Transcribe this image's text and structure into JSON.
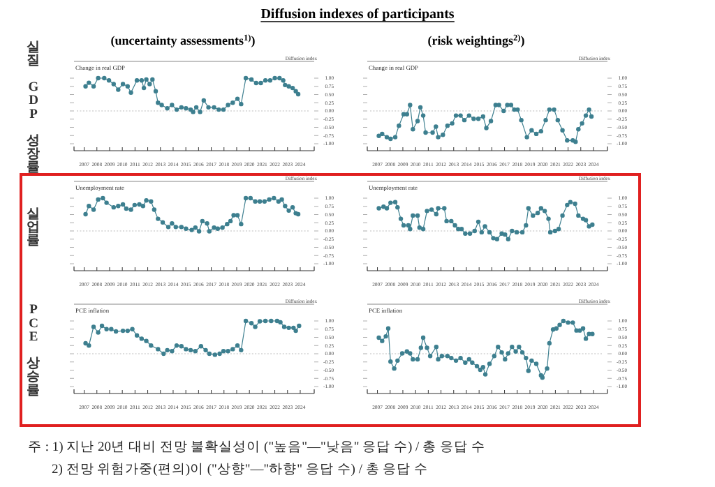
{
  "chart_data": [
    {
      "type": "line",
      "title": "Change in real GDP",
      "ylabel": "Diffusion index",
      "annotations": [
        "Diffusion indexes of participants",
        "(uncertainty assessments$^{1)}$)",
        "실질 GDP 성장률"
      ],
      "marker": "circle",
      "line_style": "solid",
      "xlim": [
        2006.2,
        2025.1
      ],
      "xticks": [
        2007,
        2008,
        2009,
        2010,
        2011,
        2012,
        2013,
        2014,
        2015,
        2016,
        2017,
        2018,
        2019,
        2020,
        2021,
        2022,
        2023,
        2024
      ],
      "ylim": [
        -1,
        1
      ],
      "yticks": [
        {
          "value": 1,
          "label": "1.00"
        },
        {
          "value": 0.75,
          "label": "0.75"
        },
        {
          "value": 0.5,
          "label": "0.50"
        },
        {
          "value": 0.25,
          "label": "0.25"
        },
        {
          "value": 0,
          "label": "0.00"
        },
        {
          "value": -0.25,
          "label": "-0.25"
        },
        {
          "value": -0.5,
          "label": "-0.50"
        },
        {
          "value": -0.75,
          "label": "-0.75"
        },
        {
          "value": -1,
          "label": "-1.00"
        }
      ],
      "ref_lines": [
        {
          "axis": "y",
          "value": 0,
          "line_style": "dotted",
          "color": "#bbbbbb"
        }
      ],
      "series": [
        {
          "color": "#3d7f8f",
          "x": [
            2007.11,
            2007.37,
            2007.74,
            2008.1,
            2008.58,
            2008.95,
            2009.32,
            2009.68,
            2010.05,
            2010.42,
            2010.68,
            2011.15,
            2011.52,
            2011.7,
            2011.89,
            2012.15,
            2012.37,
            2012.63,
            2012.81,
            2013.1,
            2013.54,
            2013.91,
            2014.28,
            2014.65,
            2015.01,
            2015.38,
            2015.57,
            2015.82,
            2016.12,
            2016.41,
            2016.78,
            2017.22,
            2017.59,
            2017.96,
            2018.32,
            2018.69,
            2019.06,
            2019.35,
            2019.72,
            2020.16,
            2020.53,
            2020.9,
            2021.26,
            2021.63,
            2022.0,
            2022.37,
            2022.66,
            2022.81,
            2023.1,
            2023.4,
            2023.65,
            2023.84
          ],
          "values": [
            0.75,
            0.86,
            0.75,
            1,
            1,
            0.93,
            0.82,
            0.65,
            0.82,
            0.75,
            0.56,
            0.93,
            0.93,
            0.7,
            0.96,
            0.82,
            0.96,
            0.6,
            0.25,
            0.18,
            0.08,
            0.18,
            0.04,
            0.11,
            0.08,
            0.04,
            -0.03,
            0.11,
            -0.03,
            0.32,
            0.11,
            0.11,
            0.04,
            0.04,
            0.18,
            0.25,
            0.37,
            0.21,
            1,
            0.96,
            0.85,
            0.85,
            0.93,
            0.93,
            1,
            1,
            0.93,
            0.79,
            0.75,
            0.7,
            0.6,
            0.51
          ]
        }
      ]
    },
    {
      "type": "line",
      "title": "Change in real GDP",
      "ylabel": "Diffusion index",
      "annotations": [
        "(risk weightings$^{2)}$)"
      ],
      "marker": "circle",
      "line_style": "solid",
      "xlim": [
        2006.2,
        2025.1
      ],
      "xticks": [
        2007,
        2008,
        2009,
        2010,
        2011,
        2012,
        2013,
        2014,
        2015,
        2016,
        2017,
        2018,
        2019,
        2020,
        2021,
        2022,
        2023,
        2024
      ],
      "ylim": [
        -1,
        1
      ],
      "yticks": [
        {
          "value": 1,
          "label": "1.00"
        },
        {
          "value": 0.75,
          "label": "0.75"
        },
        {
          "value": 0.5,
          "label": "0.50"
        },
        {
          "value": 0.25,
          "label": "0.25"
        },
        {
          "value": 0,
          "label": "0.00"
        },
        {
          "value": -0.25,
          "label": "-0.25"
        },
        {
          "value": -0.5,
          "label": "-0.50"
        },
        {
          "value": -0.75,
          "label": "-0.75"
        },
        {
          "value": -1,
          "label": "-1.00"
        }
      ],
      "ref_lines": [
        {
          "axis": "y",
          "value": 0,
          "line_style": "dotted",
          "color": "#bbbbbb"
        }
      ],
      "series": [
        {
          "color": "#3d7f8f",
          "x": [
            2007.11,
            2007.37,
            2007.74,
            2008.03,
            2008.4,
            2008.69,
            2009.06,
            2009.32,
            2009.57,
            2009.79,
            2010.16,
            2010.38,
            2010.6,
            2010.79,
            2011.34,
            2011.6,
            2011.78,
            2012.15,
            2012.51,
            2012.88,
            2013.18,
            2013.54,
            2013.84,
            2014.21,
            2014.57,
            2014.94,
            2015.31,
            2015.57,
            2015.93,
            2016.3,
            2016.56,
            2016.93,
            2017.22,
            2017.51,
            2017.77,
            2018.03,
            2018.32,
            2018.76,
            2019.13,
            2019.5,
            2019.87,
            2020.24,
            2020.53,
            2020.9,
            2021.19,
            2021.56,
            2021.93,
            2022.37,
            2022.59,
            2022.81,
            2023.1,
            2023.4,
            2023.65,
            2023.84
          ],
          "values": [
            -0.76,
            -0.7,
            -0.8,
            -0.85,
            -0.8,
            -0.45,
            -0.1,
            -0.1,
            0.18,
            -0.56,
            -0.31,
            0.11,
            -0.14,
            -0.66,
            -0.66,
            -0.48,
            -0.8,
            -0.73,
            -0.45,
            -0.38,
            -0.14,
            -0.14,
            -0.28,
            -0.14,
            -0.24,
            -0.24,
            -0.17,
            -0.52,
            -0.31,
            0.18,
            0.18,
            0,
            0.18,
            0.18,
            0.04,
            0.04,
            -0.28,
            -0.8,
            -0.59,
            -0.7,
            -0.62,
            -0.28,
            0.04,
            0.04,
            -0.28,
            -0.59,
            -0.9,
            -0.9,
            -0.94,
            -0.56,
            -0.38,
            -0.14,
            0.04,
            -0.17
          ]
        }
      ]
    },
    {
      "type": "line",
      "title": "Unemployment rate",
      "ylabel": "Diffusion index",
      "annotations": [
        "실업률"
      ],
      "marker": "circle",
      "line_style": "solid",
      "xlim": [
        2006.2,
        2025.1
      ],
      "xticks": [
        2007,
        2008,
        2009,
        2010,
        2011,
        2012,
        2013,
        2014,
        2015,
        2016,
        2017,
        2018,
        2019,
        2020,
        2021,
        2022,
        2023,
        2024
      ],
      "ylim": [
        -1,
        1
      ],
      "yticks": [
        {
          "value": 1,
          "label": "1.00"
        },
        {
          "value": 0.75,
          "label": "0.75"
        },
        {
          "value": 0.5,
          "label": "0.50"
        },
        {
          "value": 0.25,
          "label": "0.25"
        },
        {
          "value": 0,
          "label": "0.00"
        },
        {
          "value": -0.25,
          "label": "-0.25"
        },
        {
          "value": -0.5,
          "label": "-0.50"
        },
        {
          "value": -0.75,
          "label": "-0.75"
        },
        {
          "value": -1,
          "label": "-1.00"
        }
      ],
      "ref_lines": [
        {
          "axis": "y",
          "value": 0,
          "line_style": "dotted",
          "color": "#bbbbbb"
        }
      ],
      "series": [
        {
          "color": "#3d7f8f",
          "x": [
            2007.11,
            2007.37,
            2007.74,
            2008.1,
            2008.47,
            2008.76,
            2009.32,
            2009.68,
            2010.05,
            2010.31,
            2010.68,
            2010.97,
            2011.34,
            2011.63,
            2011.89,
            2012.26,
            2012.51,
            2012.81,
            2013.18,
            2013.62,
            2013.91,
            2014.21,
            2014.65,
            2015.01,
            2015.46,
            2015.75,
            2016.04,
            2016.3,
            2016.67,
            2016.85,
            2017.22,
            2017.51,
            2017.88,
            2018.25,
            2018.51,
            2018.76,
            2019.06,
            2019.35,
            2019.72,
            2020.09,
            2020.46,
            2020.82,
            2021.19,
            2021.56,
            2021.93,
            2022.29,
            2022.55,
            2022.81,
            2023.1,
            2023.4,
            2023.65,
            2023.84
          ],
          "values": [
            0.51,
            0.76,
            0.65,
            0.96,
            1,
            0.86,
            0.72,
            0.76,
            0.81,
            0.68,
            0.65,
            0.79,
            0.81,
            0.76,
            0.93,
            0.9,
            0.65,
            0.37,
            0.26,
            0.12,
            0.23,
            0.12,
            0.12,
            0.07,
            0.03,
            0.1,
            -0.01,
            0.3,
            0.23,
            -0.01,
            0.1,
            0.07,
            0.1,
            0.21,
            0.3,
            0.48,
            0.48,
            0.21,
            1,
            1,
            0.9,
            0.9,
            0.9,
            0.96,
            1,
            0.9,
            0.96,
            0.76,
            0.62,
            0.72,
            0.54,
            0.51
          ]
        }
      ]
    },
    {
      "type": "line",
      "title": "Unemployment rate",
      "ylabel": "Diffusion index",
      "marker": "circle",
      "line_style": "solid",
      "xlim": [
        2006.2,
        2025.1
      ],
      "xticks": [
        2007,
        2008,
        2009,
        2010,
        2011,
        2012,
        2013,
        2014,
        2015,
        2016,
        2017,
        2018,
        2019,
        2020,
        2021,
        2022,
        2023,
        2024
      ],
      "ylim": [
        -1,
        1
      ],
      "yticks": [
        {
          "value": 1,
          "label": "1.00"
        },
        {
          "value": 0.75,
          "label": "0.75"
        },
        {
          "value": 0.5,
          "label": "0.50"
        },
        {
          "value": 0.25,
          "label": "0.25"
        },
        {
          "value": 0,
          "label": "0.00"
        },
        {
          "value": -0.25,
          "label": "-0.25"
        },
        {
          "value": -0.5,
          "label": "-0.50"
        },
        {
          "value": -0.75,
          "label": "-0.75"
        },
        {
          "value": -1,
          "label": "-1.00"
        }
      ],
      "ref_lines": [
        {
          "axis": "y",
          "value": 0,
          "line_style": "dotted",
          "color": "#bbbbbb"
        }
      ],
      "series": [
        {
          "color": "#3d7f8f",
          "x": [
            2007.11,
            2007.48,
            2007.74,
            2008.03,
            2008.4,
            2008.58,
            2008.84,
            2009.06,
            2009.43,
            2009.57,
            2009.79,
            2010.16,
            2010.31,
            2010.6,
            2010.9,
            2011.26,
            2011.63,
            2011.78,
            2012.26,
            2012.44,
            2012.81,
            2013.1,
            2013.36,
            2013.62,
            2013.91,
            2014.28,
            2014.65,
            2014.94,
            2015.2,
            2015.46,
            2015.82,
            2016.12,
            2016.41,
            2016.78,
            2017.04,
            2017.29,
            2017.59,
            2017.96,
            2018.4,
            2018.69,
            2018.88,
            2019.24,
            2019.61,
            2019.87,
            2020.16,
            2020.46,
            2020.6,
            2020.97,
            2021.26,
            2021.56,
            2021.93,
            2022.18,
            2022.55,
            2022.81,
            2023.18,
            2023.4,
            2023.65,
            2023.91
          ],
          "values": [
            0.69,
            0.74,
            0.69,
            0.86,
            0.88,
            0.72,
            0.37,
            0.17,
            0.17,
            0.06,
            0.47,
            0.47,
            0.1,
            0.06,
            0.61,
            0.65,
            0.51,
            0.69,
            0.69,
            0.3,
            0.3,
            0.17,
            0.06,
            0.06,
            -0.08,
            -0.08,
            0,
            0.28,
            -0.04,
            0.14,
            -0.04,
            -0.22,
            -0.25,
            -0.08,
            -0.11,
            -0.25,
            0,
            -0.04,
            -0.04,
            0.17,
            0.69,
            0.47,
            0.55,
            0.69,
            0.61,
            0.37,
            -0.04,
            0,
            0.06,
            0.47,
            0.79,
            0.88,
            0.83,
            0.47,
            0.37,
            0.33,
            0.14,
            0.19
          ]
        }
      ]
    },
    {
      "type": "line",
      "title": "PCE inflation",
      "ylabel": "Diffusion index",
      "annotations": [
        "PCE 상승률",
        "주 : 1) 지난 20년 대비 전망 불확실성이 (\"높음\"—\"낮음\" 응답 수) / 총 응답 수",
        "2) 전망 위험가중(편의)이 (\"상향\"—\"하향\" 응답 수) / 총 응답 수"
      ],
      "marker": "circle",
      "line_style": "solid",
      "xlim": [
        2006.2,
        2025.1
      ],
      "xticks": [
        2007,
        2008,
        2009,
        2010,
        2011,
        2012,
        2013,
        2014,
        2015,
        2016,
        2017,
        2018,
        2019,
        2020,
        2021,
        2022,
        2023,
        2024
      ],
      "ylim": [
        -1,
        1
      ],
      "yticks": [
        {
          "value": 1,
          "label": "1.00"
        },
        {
          "value": 0.75,
          "label": "0.75"
        },
        {
          "value": 0.5,
          "label": "0.50"
        },
        {
          "value": 0.25,
          "label": "0.25"
        },
        {
          "value": 0,
          "label": "0.00"
        },
        {
          "value": -0.25,
          "label": "-0.25"
        },
        {
          "value": -0.5,
          "label": "-0.50"
        },
        {
          "value": -0.75,
          "label": "-0.75"
        },
        {
          "value": -1,
          "label": "-1.00"
        }
      ],
      "ref_lines": [
        {
          "axis": "y",
          "value": 0,
          "line_style": "dotted",
          "color": "#bbbbbb"
        }
      ],
      "series": [
        {
          "color": "#3d7f8f",
          "x": [
            2007.11,
            2007.37,
            2007.74,
            2008.1,
            2008.4,
            2008.76,
            2009.13,
            2009.5,
            2010.05,
            2010.42,
            2010.79,
            2011.15,
            2011.52,
            2011.89,
            2012.26,
            2012.81,
            2013.25,
            2013.54,
            2013.91,
            2014.28,
            2014.65,
            2015.01,
            2015.38,
            2015.75,
            2016.19,
            2016.56,
            2016.85,
            2017.29,
            2017.66,
            2017.96,
            2018.32,
            2018.69,
            2019.06,
            2019.35,
            2019.72,
            2020.16,
            2020.46,
            2020.82,
            2021.26,
            2021.71,
            2022.18,
            2022.44,
            2022.74,
            2023.1,
            2023.47,
            2023.65,
            2023.91
          ],
          "values": [
            0.32,
            0.25,
            0.82,
            0.65,
            0.85,
            0.75,
            0.75,
            0.68,
            0.7,
            0.7,
            0.75,
            0.56,
            0.46,
            0.39,
            0.25,
            0.14,
            0,
            0.11,
            0.08,
            0.25,
            0.23,
            0.14,
            0.11,
            0.08,
            0.23,
            0.11,
            0,
            -0.03,
            0,
            0.08,
            0.08,
            0.14,
            0.25,
            0.11,
            1,
            0.93,
            0.82,
            0.99,
            1,
            1,
            1,
            0.96,
            0.82,
            0.79,
            0.79,
            0.7,
            0.85
          ]
        }
      ]
    },
    {
      "type": "line",
      "title": "PCE inflation",
      "ylabel": "Diffusion index",
      "marker": "circle",
      "line_style": "solid",
      "xlim": [
        2006.2,
        2025.1
      ],
      "xticks": [
        2007,
        2008,
        2009,
        2010,
        2011,
        2012,
        2013,
        2014,
        2015,
        2016,
        2017,
        2018,
        2019,
        2020,
        2021,
        2022,
        2023,
        2024
      ],
      "ylim": [
        -1,
        1
      ],
      "yticks": [
        {
          "value": 1,
          "label": "1.00"
        },
        {
          "value": 0.75,
          "label": "0.75"
        },
        {
          "value": 0.5,
          "label": "0.50"
        },
        {
          "value": 0.25,
          "label": "0.25"
        },
        {
          "value": 0,
          "label": "0.00"
        },
        {
          "value": -0.25,
          "label": "-0.25"
        },
        {
          "value": -0.5,
          "label": "-0.50"
        },
        {
          "value": -0.75,
          "label": "-0.75"
        },
        {
          "value": -1,
          "label": "-1.00"
        }
      ],
      "ref_lines": [
        {
          "axis": "y",
          "value": 0,
          "line_style": "dotted",
          "color": "#bbbbbb"
        }
      ],
      "series": [
        {
          "color": "#3d7f8f",
          "x": [
            2007.11,
            2007.37,
            2007.66,
            2007.85,
            2008.03,
            2008.32,
            2008.58,
            2008.95,
            2009.32,
            2009.57,
            2009.79,
            2010.16,
            2010.42,
            2010.6,
            2010.9,
            2011.15,
            2011.63,
            2011.78,
            2012.07,
            2012.51,
            2012.81,
            2013.18,
            2013.54,
            2013.91,
            2014.21,
            2014.46,
            2014.83,
            2015.09,
            2015.31,
            2015.49,
            2015.82,
            2016.19,
            2016.49,
            2016.78,
            2017.04,
            2017.29,
            2017.59,
            2017.88,
            2018.14,
            2018.4,
            2018.69,
            2018.88,
            2019.13,
            2019.5,
            2019.87,
            2019.98,
            2020.35,
            2020.53,
            2020.82,
            2021.08,
            2021.34,
            2021.63,
            2022.0,
            2022.37,
            2022.66,
            2022.92,
            2023.18,
            2023.4,
            2023.65,
            2023.91
          ],
          "values": [
            0.49,
            0.39,
            0.53,
            0.77,
            -0.24,
            -0.45,
            -0.21,
            0.01,
            0.07,
            0.01,
            -0.17,
            -0.17,
            0.18,
            0.49,
            0.18,
            -0.07,
            0.21,
            -0.17,
            -0.07,
            -0.07,
            -0.13,
            -0.21,
            -0.13,
            -0.27,
            -0.17,
            -0.27,
            -0.38,
            -0.49,
            -0.41,
            -0.63,
            -0.31,
            -0.07,
            0.21,
            0.04,
            -0.17,
            0.01,
            0.21,
            0.07,
            0.21,
            0.04,
            -0.13,
            -0.52,
            -0.21,
            -0.31,
            -0.66,
            -0.73,
            -0.45,
            0.32,
            0.74,
            0.77,
            0.88,
            1,
            0.95,
            0.95,
            0.71,
            0.71,
            0.77,
            0.46,
            0.6,
            0.6
          ]
        }
      ]
    }
  ]
}
